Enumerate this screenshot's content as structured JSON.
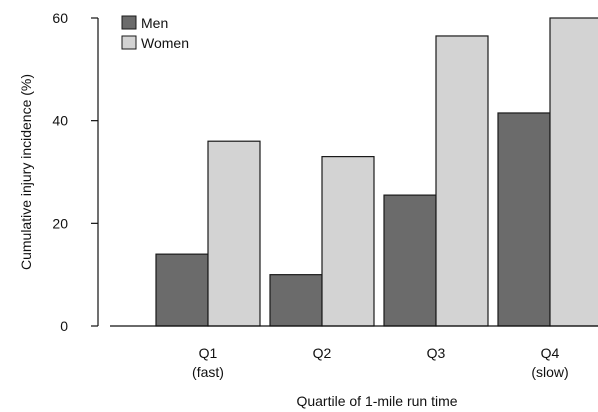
{
  "chart_data": {
    "type": "bar",
    "categories": [
      [
        "Q1",
        "(fast)"
      ],
      [
        "Q2"
      ],
      [
        "Q3"
      ],
      [
        "Q4",
        "(slow)"
      ]
    ],
    "series": [
      {
        "name": "Men",
        "values": [
          14,
          10,
          25.5,
          41.5
        ],
        "color": "#6b6b6b"
      },
      {
        "name": "Women",
        "values": [
          36,
          33,
          56.5,
          60
        ],
        "color": "#d3d3d3"
      }
    ],
    "xlabel": "Quartile of 1-mile run time",
    "ylabel": "Cumulative injury incidence (%)",
    "ylim": [
      0,
      60
    ],
    "yticks": [
      0,
      20,
      40,
      60
    ],
    "grid": false,
    "legend_position": "top-left"
  }
}
